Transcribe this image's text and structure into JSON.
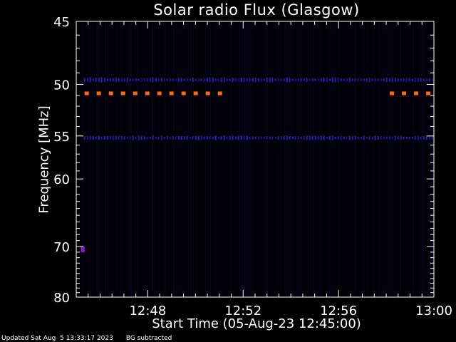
{
  "chart_data": {
    "type": "heatmap",
    "title": "Solar radio Flux (Glasgow)",
    "xlabel": "Start Time (05-Aug-23 12:45:00)",
    "ylabel": "Frequency [MHz]",
    "x_range_minutes": [
      0,
      15
    ],
    "x_ticks": [
      {
        "label": "12:48",
        "minute": 3
      },
      {
        "label": "12:52",
        "minute": 7
      },
      {
        "label": "12:56",
        "minute": 11
      },
      {
        "label": "13:00",
        "minute": 15
      }
    ],
    "y_range_mhz": [
      45,
      80
    ],
    "y_ticks": [
      {
        "label": "45",
        "mhz": 45
      },
      {
        "label": "50",
        "mhz": 50
      },
      {
        "label": "55",
        "mhz": 55
      },
      {
        "label": "60",
        "mhz": 60
      },
      {
        "label": "70",
        "mhz": 70
      },
      {
        "label": "80",
        "mhz": 80
      }
    ],
    "y_scale": "reciprocal",
    "features": [
      {
        "name": "band",
        "mhz": 49.6,
        "color": "#2b24c8",
        "from_min": 0.2,
        "to_min": 15
      },
      {
        "name": "band",
        "mhz": 50.8,
        "color": "#ff6a1a",
        "from_min": 0.2,
        "to_min": 6.0
      },
      {
        "name": "band",
        "mhz": 50.8,
        "color": "#ff6a1a",
        "from_min": 13.0,
        "to_min": 15
      },
      {
        "name": "band",
        "mhz": 55.2,
        "color": "#2b24c8",
        "from_min": 0.2,
        "to_min": 15
      },
      {
        "name": "spot",
        "mhz": 70.5,
        "color": "#8a1ad0",
        "from_min": 0.2,
        "to_min": 0.35
      }
    ]
  },
  "footer": {
    "updated": "Updated Sat Aug  5 13:33:17 2023",
    "note": "BG subtracted"
  },
  "colors": {
    "background": "#000000",
    "axis": "#ffffff",
    "low_noise": "#0c0840",
    "blue_band": "#2b24c8",
    "orange_band": "#ff6a1a"
  }
}
